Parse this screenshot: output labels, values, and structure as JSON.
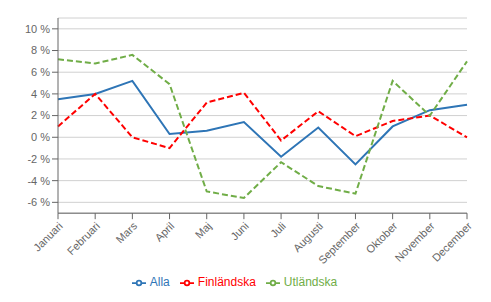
{
  "chart_data": {
    "type": "line",
    "categories": [
      "Januari",
      "Februari",
      "Mars",
      "April",
      "Maj",
      "Juni",
      "Juli",
      "Augusti",
      "September",
      "Oktober",
      "November",
      "December"
    ],
    "series": [
      {
        "name": "Alla",
        "color": "#2E75B6",
        "line_style": "solid",
        "values": [
          3.5,
          4.0,
          5.2,
          0.3,
          0.6,
          1.4,
          -1.8,
          0.9,
          -2.5,
          1.0,
          2.5,
          3.0
        ]
      },
      {
        "name": "Finländska",
        "color": "#FF0000",
        "line_style": "dashed",
        "values": [
          1.0,
          4.0,
          0.0,
          -1.0,
          3.2,
          4.1,
          -0.3,
          2.4,
          0.1,
          1.5,
          2.0,
          0.0
        ]
      },
      {
        "name": "Utländska",
        "color": "#70AD47",
        "line_style": "dashed",
        "values": [
          7.2,
          6.8,
          7.6,
          4.9,
          -5.0,
          -5.6,
          -2.3,
          -4.5,
          -5.2,
          5.2,
          2.0,
          7.0
        ]
      }
    ],
    "ylim": [
      -7,
      11
    ],
    "yticks": [
      {
        "value": -6,
        "label": "-6 %"
      },
      {
        "value": -4,
        "label": "-4 %"
      },
      {
        "value": -2,
        "label": "-2 %"
      },
      {
        "value": 0,
        "label": "0 %"
      },
      {
        "value": 2,
        "label": "2 %"
      },
      {
        "value": 4,
        "label": "4 %"
      },
      {
        "value": 6,
        "label": "6 %"
      },
      {
        "value": 8,
        "label": "8 %"
      },
      {
        "value": 10,
        "label": "10 %"
      }
    ],
    "grid": true,
    "legend": "bottom"
  }
}
